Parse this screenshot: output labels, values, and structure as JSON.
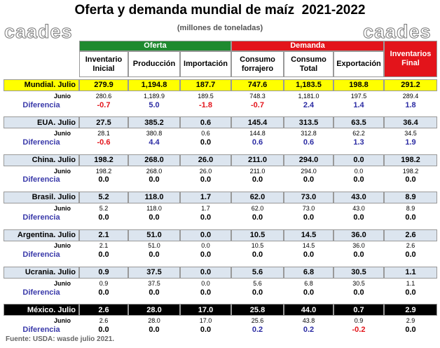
{
  "header": {
    "title": "Oferta y demanda mundial de maíz  2021-2022",
    "subtitle": "(millones de toneladas)",
    "logo_left": "caades",
    "logo_right": "caades"
  },
  "table": {
    "groups": [
      {
        "label": "Oferta",
        "color": "#1f8a2f",
        "span": 3
      },
      {
        "label": "Demanda",
        "color": "#e3141b",
        "span": 3
      }
    ],
    "final_header": {
      "label": "Inventarios Final",
      "color": "#e3141b"
    },
    "columns": [
      "Inventario Inicial",
      "Producción",
      "Importación",
      "Consumo forrajero",
      "Consumo Total",
      "Exportación"
    ],
    "colors": {
      "negative": "#e3141b",
      "positive": "#2b2ba3",
      "zero": "#000000",
      "diff_label": "#3a3aaa"
    },
    "blocks": [
      {
        "name": "Mundial. Julio",
        "color": "#ffff00",
        "text_color": "#000000",
        "julio": [
          "279.9",
          "1,194.8",
          "187.7",
          "747.6",
          "1,183.5",
          "198.8",
          "291.2"
        ],
        "junio_label": "Junio",
        "junio": [
          "280.6",
          "1,189.9",
          "189.5",
          "748.3",
          "1,181.0",
          "197.5",
          "289.4"
        ],
        "dif_label": "Diferencia",
        "dif": [
          "-0.7",
          "5.0",
          "-1.8",
          "-0.7",
          "2.4",
          "1.4",
          "1.8"
        ]
      },
      {
        "name": "EUA. Julio",
        "color": "#dce5ef",
        "text_color": "#000000",
        "julio": [
          "27.5",
          "385.2",
          "0.6",
          "145.4",
          "313.5",
          "63.5",
          "36.4"
        ],
        "junio_label": "Junio",
        "junio": [
          "28.1",
          "380.8",
          "0.6",
          "144.8",
          "312.8",
          "62.2",
          "34.5"
        ],
        "dif_label": "Diferencia",
        "dif": [
          "-0.6",
          "4.4",
          "0.0",
          "0.6",
          "0.6",
          "1.3",
          "1.9"
        ]
      },
      {
        "name": "China. Julio",
        "color": "#dce5ef",
        "text_color": "#000000",
        "julio": [
          "198.2",
          "268.0",
          "26.0",
          "211.0",
          "294.0",
          "0.0",
          "198.2"
        ],
        "junio_label": "Junio",
        "junio": [
          "198.2",
          "268.0",
          "26.0",
          "211.0",
          "294.0",
          "0.0",
          "198.2"
        ],
        "dif_label": "Diferencia",
        "dif": [
          "0.0",
          "0.0",
          "0.0",
          "0.0",
          "0.0",
          "0.0",
          "0.0"
        ]
      },
      {
        "name": "Brasil. Julio",
        "color": "#dce5ef",
        "text_color": "#000000",
        "julio": [
          "5.2",
          "118.0",
          "1.7",
          "62.0",
          "73.0",
          "43.0",
          "8.9"
        ],
        "junio_label": "Junio",
        "junio": [
          "5.2",
          "118.0",
          "1.7",
          "62.0",
          "73.0",
          "43.0",
          "8.9"
        ],
        "dif_label": "Diferencia",
        "dif": [
          "0.0",
          "0.0",
          "0.0",
          "0.0",
          "0.0",
          "0.0",
          "0.0"
        ]
      },
      {
        "name": "Argentina. Julio",
        "color": "#dce5ef",
        "text_color": "#000000",
        "julio": [
          "2.1",
          "51.0",
          "0.0",
          "10.5",
          "14.5",
          "36.0",
          "2.6"
        ],
        "junio_label": "Junio",
        "junio": [
          "2.1",
          "51.0",
          "0.0",
          "10.5",
          "14.5",
          "36.0",
          "2.6"
        ],
        "dif_label": "Diferencia",
        "dif": [
          "0.0",
          "0.0",
          "0.0",
          "0.0",
          "0.0",
          "0.0",
          "0.0"
        ]
      },
      {
        "name": "Ucrania. Julio",
        "color": "#dce5ef",
        "text_color": "#000000",
        "julio": [
          "0.9",
          "37.5",
          "0.0",
          "5.6",
          "6.8",
          "30.5",
          "1.1"
        ],
        "junio_label": "Junio",
        "junio": [
          "0.9",
          "37.5",
          "0.0",
          "5.6",
          "6.8",
          "30.5",
          "1.1"
        ],
        "dif_label": "Diferencia",
        "dif": [
          "0.0",
          "0.0",
          "0.0",
          "0.0",
          "0.0",
          "0.0",
          "0.0"
        ]
      },
      {
        "name": "México. Julio",
        "color": "#000000",
        "text_color": "#ffffff",
        "julio": [
          "2.6",
          "28.0",
          "17.0",
          "25.8",
          "44.0",
          "0.7",
          "2.9"
        ],
        "junio_label": "Junio",
        "junio": [
          "2.6",
          "28.0",
          "17.0",
          "25.6",
          "43.8",
          "0.9",
          "2.9"
        ],
        "dif_label": "Diferencia",
        "dif": [
          "0.0",
          "0.0",
          "0.0",
          "0.2",
          "0.2",
          "-0.2",
          "0.0"
        ]
      }
    ]
  },
  "footer": "Fuente: USDA: wasde julio 2021."
}
